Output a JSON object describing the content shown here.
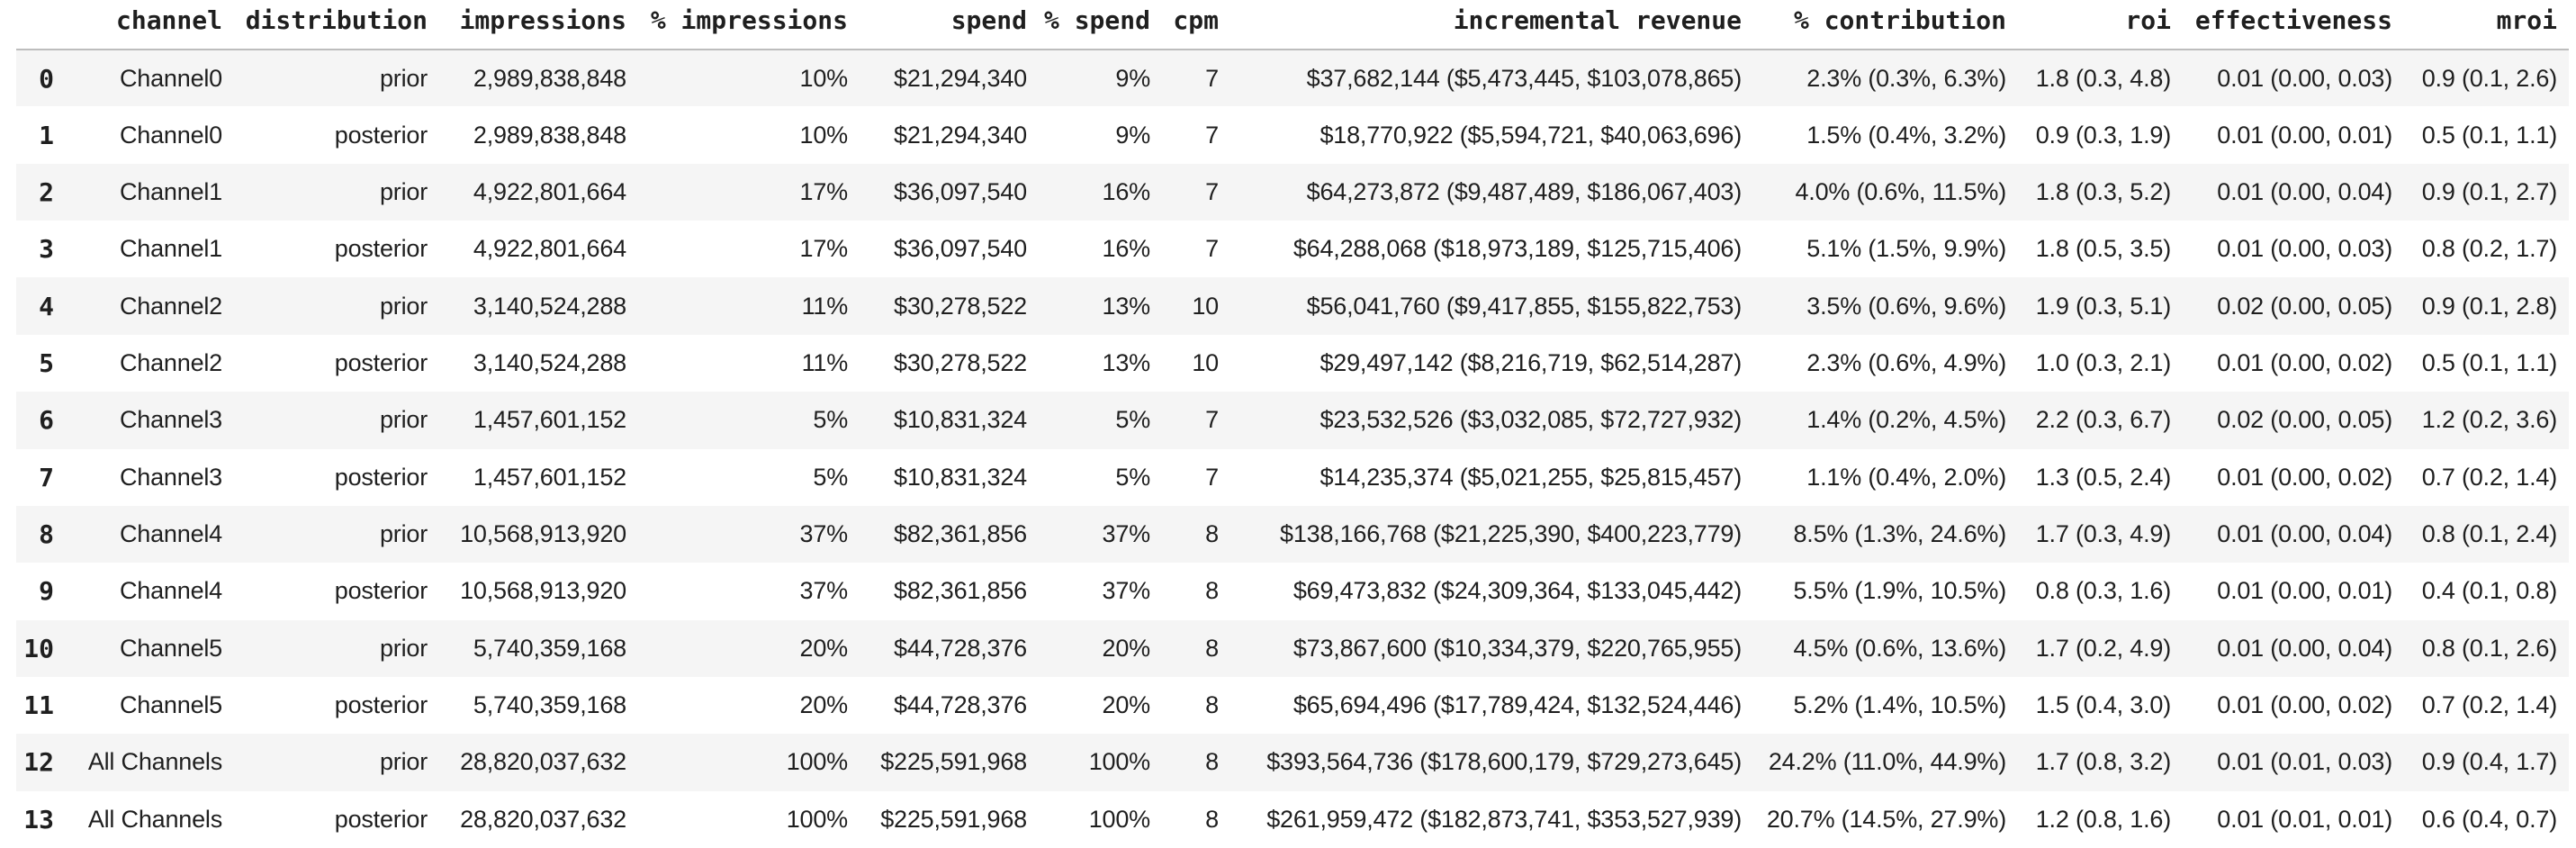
{
  "colors": {
    "background": "#ffffff",
    "text": "#1f1f1f",
    "stripe": "#f5f5f5",
    "header_border": "#bdbdbd"
  },
  "table": {
    "columns": [
      "",
      "channel",
      "distribution",
      "impressions",
      "% impressions",
      "spend",
      "% spend",
      "cpm",
      "incremental revenue",
      "% contribution",
      "roi",
      "effectiveness",
      "mroi"
    ],
    "rows": [
      [
        "0",
        "Channel0",
        "prior",
        "2,989,838,848",
        "10%",
        "$21,294,340",
        "9%",
        "7",
        "$37,682,144 ($5,473,445, $103,078,865)",
        "2.3% (0.3%, 6.3%)",
        "1.8 (0.3, 4.8)",
        "0.01 (0.00, 0.03)",
        "0.9 (0.1, 2.6)"
      ],
      [
        "1",
        "Channel0",
        "posterior",
        "2,989,838,848",
        "10%",
        "$21,294,340",
        "9%",
        "7",
        "$18,770,922 ($5,594,721, $40,063,696)",
        "1.5% (0.4%, 3.2%)",
        "0.9 (0.3, 1.9)",
        "0.01 (0.00, 0.01)",
        "0.5 (0.1, 1.1)"
      ],
      [
        "2",
        "Channel1",
        "prior",
        "4,922,801,664",
        "17%",
        "$36,097,540",
        "16%",
        "7",
        "$64,273,872 ($9,487,489, $186,067,403)",
        "4.0% (0.6%, 11.5%)",
        "1.8 (0.3, 5.2)",
        "0.01 (0.00, 0.04)",
        "0.9 (0.1, 2.7)"
      ],
      [
        "3",
        "Channel1",
        "posterior",
        "4,922,801,664",
        "17%",
        "$36,097,540",
        "16%",
        "7",
        "$64,288,068 ($18,973,189, $125,715,406)",
        "5.1% (1.5%, 9.9%)",
        "1.8 (0.5, 3.5)",
        "0.01 (0.00, 0.03)",
        "0.8 (0.2, 1.7)"
      ],
      [
        "4",
        "Channel2",
        "prior",
        "3,140,524,288",
        "11%",
        "$30,278,522",
        "13%",
        "10",
        "$56,041,760 ($9,417,855, $155,822,753)",
        "3.5% (0.6%, 9.6%)",
        "1.9 (0.3, 5.1)",
        "0.02 (0.00, 0.05)",
        "0.9 (0.1, 2.8)"
      ],
      [
        "5",
        "Channel2",
        "posterior",
        "3,140,524,288",
        "11%",
        "$30,278,522",
        "13%",
        "10",
        "$29,497,142 ($8,216,719, $62,514,287)",
        "2.3% (0.6%, 4.9%)",
        "1.0 (0.3, 2.1)",
        "0.01 (0.00, 0.02)",
        "0.5 (0.1, 1.1)"
      ],
      [
        "6",
        "Channel3",
        "prior",
        "1,457,601,152",
        "5%",
        "$10,831,324",
        "5%",
        "7",
        "$23,532,526 ($3,032,085, $72,727,932)",
        "1.4% (0.2%, 4.5%)",
        "2.2 (0.3, 6.7)",
        "0.02 (0.00, 0.05)",
        "1.2 (0.2, 3.6)"
      ],
      [
        "7",
        "Channel3",
        "posterior",
        "1,457,601,152",
        "5%",
        "$10,831,324",
        "5%",
        "7",
        "$14,235,374 ($5,021,255, $25,815,457)",
        "1.1% (0.4%, 2.0%)",
        "1.3 (0.5, 2.4)",
        "0.01 (0.00, 0.02)",
        "0.7 (0.2, 1.4)"
      ],
      [
        "8",
        "Channel4",
        "prior",
        "10,568,913,920",
        "37%",
        "$82,361,856",
        "37%",
        "8",
        "$138,166,768 ($21,225,390, $400,223,779)",
        "8.5% (1.3%, 24.6%)",
        "1.7 (0.3, 4.9)",
        "0.01 (0.00, 0.04)",
        "0.8 (0.1, 2.4)"
      ],
      [
        "9",
        "Channel4",
        "posterior",
        "10,568,913,920",
        "37%",
        "$82,361,856",
        "37%",
        "8",
        "$69,473,832 ($24,309,364, $133,045,442)",
        "5.5% (1.9%, 10.5%)",
        "0.8 (0.3, 1.6)",
        "0.01 (0.00, 0.01)",
        "0.4 (0.1, 0.8)"
      ],
      [
        "10",
        "Channel5",
        "prior",
        "5,740,359,168",
        "20%",
        "$44,728,376",
        "20%",
        "8",
        "$73,867,600 ($10,334,379, $220,765,955)",
        "4.5% (0.6%, 13.6%)",
        "1.7 (0.2, 4.9)",
        "0.01 (0.00, 0.04)",
        "0.8 (0.1, 2.6)"
      ],
      [
        "11",
        "Channel5",
        "posterior",
        "5,740,359,168",
        "20%",
        "$44,728,376",
        "20%",
        "8",
        "$65,694,496 ($17,789,424, $132,524,446)",
        "5.2% (1.4%, 10.5%)",
        "1.5 (0.4, 3.0)",
        "0.01 (0.00, 0.02)",
        "0.7 (0.2, 1.4)"
      ],
      [
        "12",
        "All Channels",
        "prior",
        "28,820,037,632",
        "100%",
        "$225,591,968",
        "100%",
        "8",
        "$393,564,736 ($178,600,179, $729,273,645)",
        "24.2% (11.0%, 44.9%)",
        "1.7 (0.8, 3.2)",
        "0.01 (0.01, 0.03)",
        "0.9 (0.4, 1.7)"
      ],
      [
        "13",
        "All Channels",
        "posterior",
        "28,820,037,632",
        "100%",
        "$225,591,968",
        "100%",
        "8",
        "$261,959,472 ($182,873,741, $353,527,939)",
        "20.7% (14.5%, 27.9%)",
        "1.2 (0.8, 1.6)",
        "0.01 (0.01, 0.01)",
        "0.6 (0.4, 0.7)"
      ]
    ]
  }
}
